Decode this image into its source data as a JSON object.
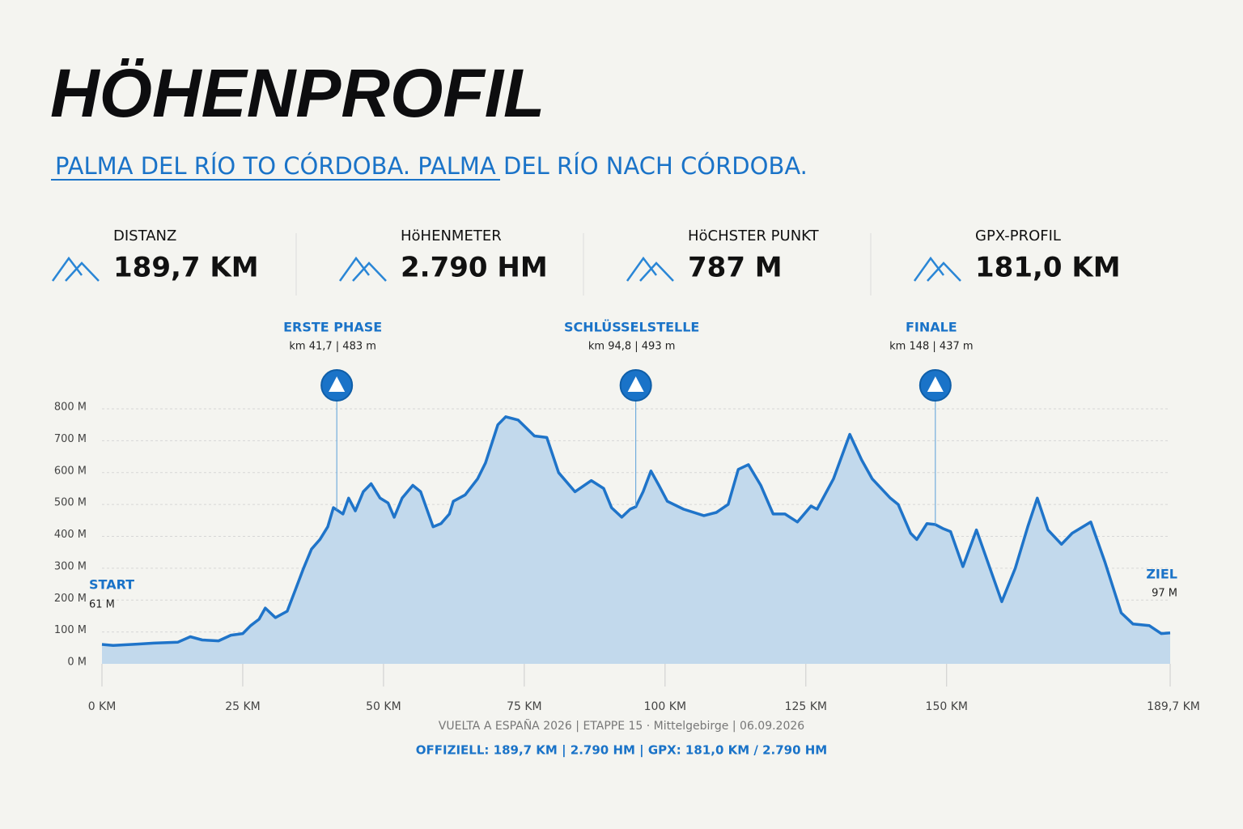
{
  "header": {
    "title": "HÖHENPROFIL",
    "subtitle": "PALMA DEL RÍO TO CÓRDOBA. PALMA DEL RÍO NACH CÓRDOBA."
  },
  "stats": [
    {
      "label": "DISTANZ",
      "value": "189,7 KM"
    },
    {
      "label": "HöHENMETER",
      "value": "2.790 HM"
    },
    {
      "label": "HöCHSTER PUNKT",
      "value": "787 M"
    },
    {
      "label": "GPX-PROFIL",
      "value": "181,0 KM"
    }
  ],
  "chart_data": {
    "type": "area",
    "color": "#1f74c9",
    "fill": "#c2d9ec",
    "grid": true,
    "x": [
      0,
      2,
      6.3,
      9.2,
      13.5,
      15.7,
      17.8,
      20.7,
      22.9,
      25,
      26.4,
      27.9,
      29,
      30.8,
      32.9,
      34.3,
      35.8,
      37.2,
      38.7,
      40.1,
      41.1,
      41.7,
      42.8,
      43.8,
      45,
      46.4,
      47.8,
      49.4,
      50.8,
      51.9,
      53.3,
      55.2,
      56.6,
      58.8,
      60.2,
      61.7,
      62.4,
      64.5,
      66.7,
      68.1,
      70.3,
      71.7,
      73.9,
      76.8,
      79,
      81.1,
      84,
      86.9,
      89.1,
      90.5,
      92.3,
      93.8,
      94.8,
      96.1,
      97.5,
      98.9,
      100.4,
      103.3,
      106.9,
      109.1,
      111.2,
      113,
      114.8,
      117,
      119.2,
      121.3,
      123.5,
      125.9,
      127,
      129.9,
      132.8,
      134.9,
      136.8,
      140,
      141.4,
      143.6,
      144.7,
      146.5,
      148,
      149.3,
      150.7,
      152.9,
      155.3,
      157.9,
      159.8,
      162.2,
      164.4,
      166.1,
      168,
      170.4,
      172.3,
      175.6,
      178.1,
      181,
      183.1,
      186,
      188.1,
      189.7
    ],
    "values": [
      61,
      58,
      62,
      65,
      68,
      85,
      75,
      72,
      90,
      95,
      120,
      140,
      175,
      145,
      165,
      230,
      300,
      360,
      390,
      430,
      490,
      483,
      470,
      520,
      480,
      540,
      565,
      520,
      505,
      460,
      520,
      560,
      540,
      430,
      440,
      470,
      510,
      530,
      580,
      630,
      750,
      775,
      765,
      715,
      710,
      600,
      540,
      575,
      550,
      490,
      460,
      485,
      493,
      540,
      605,
      560,
      510,
      485,
      465,
      475,
      500,
      610,
      625,
      560,
      470,
      470,
      445,
      495,
      485,
      580,
      720,
      640,
      580,
      520,
      500,
      410,
      390,
      440,
      437,
      425,
      415,
      305,
      420,
      290,
      195,
      300,
      430,
      520,
      420,
      375,
      410,
      445,
      320,
      160,
      125,
      120,
      95,
      97
    ],
    "xlim": [
      0,
      189.7
    ],
    "ylim": [
      0,
      800
    ],
    "xticks": [
      {
        "value": 0,
        "label": "0 KM"
      },
      {
        "value": 25,
        "label": "25 KM"
      },
      {
        "value": 50,
        "label": "50 KM"
      },
      {
        "value": 75,
        "label": "75 KM"
      },
      {
        "value": 100,
        "label": "100 KM"
      },
      {
        "value": 125,
        "label": "125 KM"
      },
      {
        "value": 150,
        "label": "150 KM"
      },
      {
        "value": 189.7,
        "label": "189,7 KM"
      }
    ],
    "yticks": [
      {
        "value": 0,
        "label": "0 M"
      },
      {
        "value": 100,
        "label": "100 M"
      },
      {
        "value": 200,
        "label": "200 M"
      },
      {
        "value": 300,
        "label": "300 M"
      },
      {
        "value": 400,
        "label": "400 M"
      },
      {
        "value": 500,
        "label": "500 M"
      },
      {
        "value": 600,
        "label": "600 M"
      },
      {
        "value": 700,
        "label": "700 M"
      },
      {
        "value": 800,
        "label": "800 M"
      }
    ],
    "annotations": [
      {
        "title": "ERSTE PHASE",
        "text": "km 41,7 | 483 m",
        "x": 41.7,
        "y": 483
      },
      {
        "title": "SCHLÜSSELSTELLE",
        "text": "km 94,8 | 493 m",
        "x": 94.8,
        "y": 493
      },
      {
        "title": "FINALE",
        "text": "km 148 | 437 m",
        "x": 148,
        "y": 437
      }
    ],
    "start": {
      "label": "START",
      "value": "61 M"
    },
    "end": {
      "label": "ZIEL",
      "value": "97 M"
    }
  },
  "footer": {
    "line1": "VUELTA A ESPAÑA 2026 | ETAPPE 15 · Mittelgebirge | 06.09.2026",
    "line2": "OFFIZIELL: 189,7 KM | 2.790 HM | GPX: 181,0 KM / 2.790 HM"
  }
}
